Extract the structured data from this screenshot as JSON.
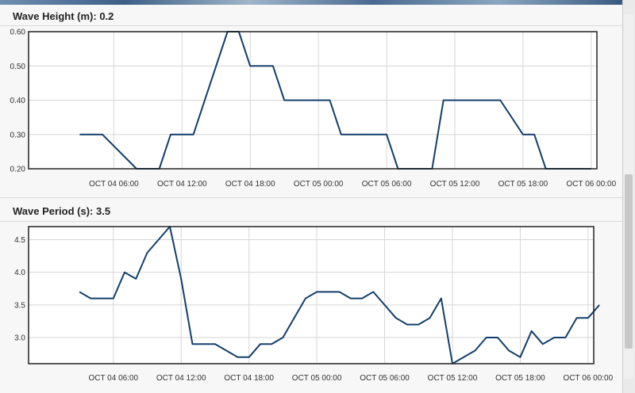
{
  "charts": [
    {
      "title_label": "Wave Height (m): ",
      "title_value": "0.2"
    },
    {
      "title_label": "Wave Period (s): ",
      "title_value": "3.5"
    }
  ],
  "chart_data": [
    {
      "type": "line",
      "title": "Wave Height (m): 0.2",
      "xlabel": "",
      "ylabel": "",
      "x_unit": "hours",
      "xlim": [
        -1.5,
        48.5
      ],
      "ylim": [
        0.2,
        0.6
      ],
      "yticks": [
        0.2,
        0.3,
        0.4,
        0.5,
        0.6
      ],
      "ytick_labels": [
        "0.20",
        "0.30",
        "0.40",
        "0.50",
        "0.60"
      ],
      "xticks": [
        6,
        12,
        18,
        24,
        30,
        36,
        42,
        48
      ],
      "xtick_labels": [
        "OCT 04 06:00",
        "OCT 04 12:00",
        "OCT 04 18:00",
        "OCT 05 00:00",
        "OCT 05 06:00",
        "OCT 05 12:00",
        "OCT 05 18:00",
        "OCT 06 00:00"
      ],
      "grid": true,
      "line_color": "#123f6b",
      "series": [
        {
          "x": [
            3,
            5,
            8,
            10,
            11,
            13,
            16,
            17,
            18,
            20,
            21,
            22,
            25,
            26,
            29,
            30,
            31,
            33,
            34,
            35,
            36,
            38,
            40,
            42,
            43,
            44,
            46,
            47,
            48
          ],
          "values": [
            0.3,
            0.3,
            0.2,
            0.2,
            0.3,
            0.3,
            0.6,
            0.6,
            0.5,
            0.5,
            0.4,
            0.4,
            0.4,
            0.3,
            0.3,
            0.3,
            0.2,
            0.2,
            0.2,
            0.4,
            0.4,
            0.4,
            0.4,
            0.3,
            0.3,
            0.2,
            0.2,
            0.2,
            0.2
          ]
        }
      ]
    },
    {
      "type": "line",
      "title": "Wave Period (s): 3.5",
      "xlabel": "",
      "ylabel": "",
      "x_unit": "hours",
      "xlim": [
        -1.5,
        48.5
      ],
      "ylim": [
        2.6,
        4.7
      ],
      "yticks": [
        3.0,
        3.5,
        4.0,
        4.5
      ],
      "ytick_labels": [
        "3.0",
        "3.5",
        "4.0",
        "4.5"
      ],
      "xticks": [
        6,
        12,
        18,
        24,
        30,
        36,
        42,
        48
      ],
      "xtick_labels": [
        "OCT 04 06:00",
        "OCT 04 12:00",
        "OCT 04 18:00",
        "OCT 05 00:00",
        "OCT 05 06:00",
        "OCT 05 12:00",
        "OCT 05 18:00",
        "OCT 06 00:00"
      ],
      "grid": true,
      "line_color": "#123f6b",
      "series": [
        {
          "x": [
            3,
            4,
            5,
            6,
            7,
            8,
            9,
            11,
            12,
            13,
            14,
            15,
            17,
            18,
            19,
            20,
            21,
            23,
            24,
            25,
            26,
            27,
            28,
            29,
            30,
            31,
            32,
            33,
            34,
            35,
            36,
            37,
            38,
            39,
            40,
            41,
            42,
            43,
            44,
            45,
            46,
            47,
            48,
            49
          ],
          "values": [
            3.7,
            3.6,
            3.6,
            3.6,
            4.0,
            3.9,
            4.3,
            4.7,
            3.9,
            2.9,
            2.9,
            2.9,
            2.7,
            2.7,
            2.9,
            2.9,
            3.0,
            3.6,
            3.7,
            3.7,
            3.7,
            3.6,
            3.6,
            3.7,
            3.5,
            3.3,
            3.2,
            3.2,
            3.3,
            3.6,
            2.6,
            2.7,
            2.8,
            3.0,
            3.0,
            2.8,
            2.7,
            3.1,
            2.9,
            3.0,
            3.0,
            3.3,
            3.3,
            3.5
          ]
        }
      ]
    }
  ]
}
